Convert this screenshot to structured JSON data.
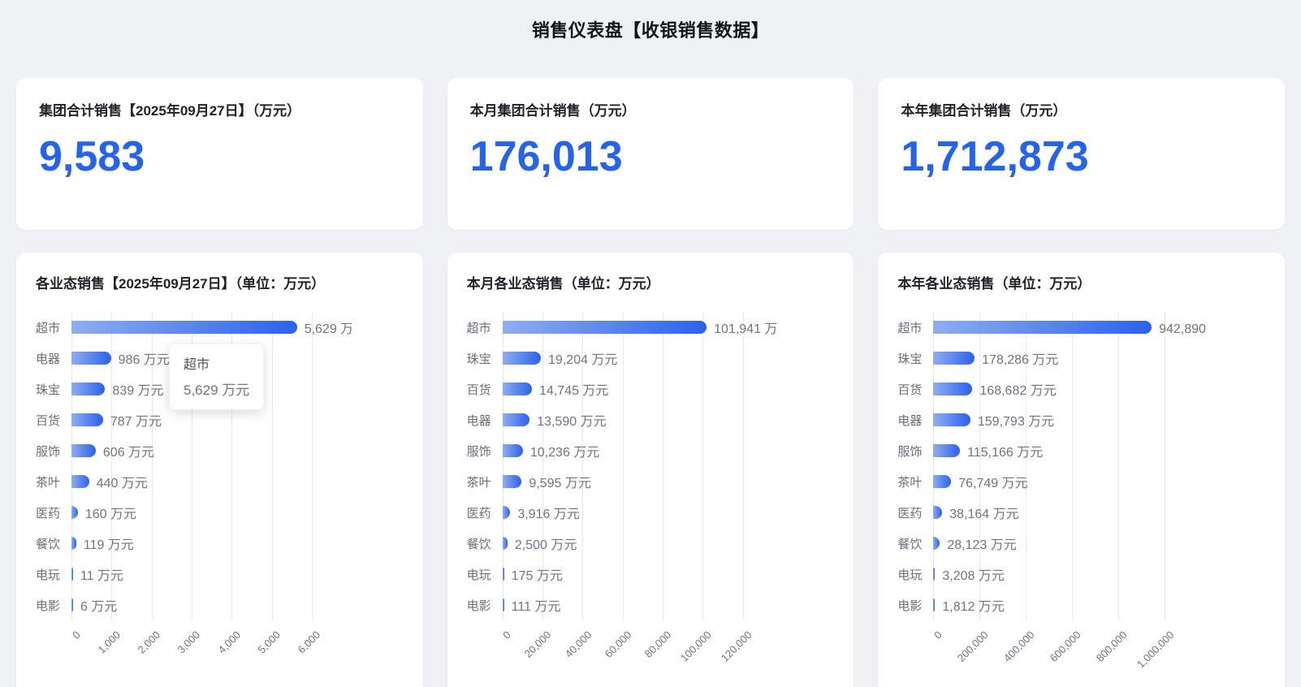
{
  "page": {
    "title": "销售仪表盘【收银销售数据】",
    "accent_color": "#2563eb",
    "bar_gradient": [
      "#8fadf2",
      "#2b62eb"
    ]
  },
  "kpi_cards": [
    {
      "title": "集团合计销售【2025年09月27日】（万元）",
      "value": "9,583"
    },
    {
      "title": "本月集团合计销售（万元）",
      "value": "176,013"
    },
    {
      "title": "本年集团合计销售（万元）",
      "value": "1,712,873"
    }
  ],
  "tooltip": {
    "chart_index": 0,
    "category": "超市",
    "value": "5,629 万元"
  },
  "chart_data": [
    {
      "type": "bar",
      "orientation": "horizontal",
      "title": "各业态销售【2025年09月27日】（单位：万元）",
      "categories": [
        "超市",
        "电器",
        "珠宝",
        "百货",
        "服饰",
        "茶叶",
        "医药",
        "餐饮",
        "电玩",
        "电影"
      ],
      "values": [
        5629,
        986,
        839,
        787,
        606,
        440,
        160,
        119,
        11,
        6
      ],
      "value_labels": [
        "5,629 万元",
        "986 万元",
        "839 万元",
        "787 万元",
        "606 万元",
        "440 万元",
        "160 万元",
        "119 万元",
        "11 万元",
        "6 万元"
      ],
      "unit": "万元",
      "xlim": [
        0,
        6000
      ],
      "xticks": [
        "0",
        "1,000",
        "2,000",
        "3,000",
        "4,000",
        "5,000",
        "6,000"
      ],
      "grid": true,
      "legend": false
    },
    {
      "type": "bar",
      "orientation": "horizontal",
      "title": "本月各业态销售（单位：万元）",
      "categories": [
        "超市",
        "珠宝",
        "百货",
        "电器",
        "服饰",
        "茶叶",
        "医药",
        "餐饮",
        "电玩",
        "电影"
      ],
      "values": [
        101941,
        19204,
        14745,
        13590,
        10236,
        9595,
        3916,
        2500,
        175,
        111
      ],
      "value_labels": [
        "101,941 万元",
        "19,204 万元",
        "14,745 万元",
        "13,590 万元",
        "10,236 万元",
        "9,595 万元",
        "3,916 万元",
        "2,500 万元",
        "175 万元",
        "111 万元"
      ],
      "unit": "万元",
      "xlim": [
        0,
        120000
      ],
      "xticks": [
        "0",
        "20,000",
        "40,000",
        "60,000",
        "80,000",
        "100,000",
        "120,000"
      ],
      "grid": true,
      "legend": false
    },
    {
      "type": "bar",
      "orientation": "horizontal",
      "title": "本年各业态销售（单位：万元）",
      "categories": [
        "超市",
        "珠宝",
        "百货",
        "电器",
        "服饰",
        "茶叶",
        "医药",
        "餐饮",
        "电玩",
        "电影"
      ],
      "values": [
        942890,
        178286,
        168682,
        159793,
        115166,
        76749,
        38164,
        28123,
        3208,
        1812
      ],
      "value_labels": [
        "942,890 万元",
        "178,286 万元",
        "168,682 万元",
        "159,793 万元",
        "115,166 万元",
        "76,749 万元",
        "38,164 万元",
        "28,123 万元",
        "3,208 万元",
        "1,812 万元"
      ],
      "unit": "万元",
      "xlim": [
        0,
        1000000
      ],
      "xticks": [
        "0",
        "200,000",
        "400,000",
        "600,000",
        "800,000",
        "1,000,000"
      ],
      "grid": true,
      "legend": false
    }
  ]
}
